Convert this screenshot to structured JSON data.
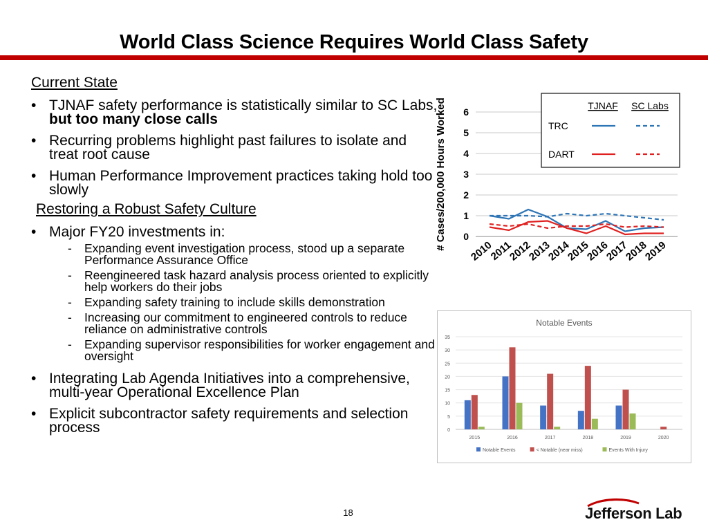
{
  "title": "World Class Science Requires World Class Safety",
  "current_state": {
    "heading": "Current State",
    "bullets": [
      {
        "text": "TJNAF safety performance is statistically similar to SC Labs, ",
        "bold": "but too many close calls"
      },
      {
        "text": "Recurring problems highlight past failures to isolate and treat root cause"
      },
      {
        "text": "Human Performance Improvement practices taking hold too slowly"
      }
    ]
  },
  "restoring": {
    "heading": "Restoring a Robust Safety Culture",
    "investments_label": "Major FY20 investments in:",
    "subitems": [
      "Expanding event investigation process, stood up a separate Performance Assurance Office",
      "Reengineered task hazard analysis process oriented to explicitly help workers do their jobs",
      "Expanding safety training to include skills demonstration",
      "Increasing our commitment to engineered controls to reduce reliance on administrative controls",
      "Expanding supervisor responsibilities for worker engagement and oversight"
    ],
    "bullets": [
      "Integrating Lab Agenda Initiatives into a comprehensive, multi-year Operational Excellence Plan",
      "Explicit subcontractor safety requirements and selection process"
    ]
  },
  "page_number": "18",
  "logo": "Jefferson Lab",
  "chart_data": [
    {
      "type": "line",
      "title": "",
      "ylabel": "# Cases/200,000 Hours Worked",
      "xlabel": "",
      "x": [
        "2010",
        "2011",
        "2012",
        "2013",
        "2014",
        "2015",
        "2016",
        "2017",
        "2018",
        "2019"
      ],
      "ylim": [
        0,
        6
      ],
      "yticks": [
        "0",
        "1",
        "2",
        "3",
        "4",
        "5",
        "6"
      ],
      "grid": true,
      "legend": {
        "placement": "top-right",
        "col_headers": [
          "TJNAF",
          "SC Labs"
        ],
        "rows": [
          "TRC",
          "DART"
        ]
      },
      "series": [
        {
          "name": "TRC",
          "org": "TJNAF",
          "color": "#2e75b6",
          "dash": false,
          "values": [
            1.0,
            0.85,
            1.3,
            0.95,
            0.4,
            0.35,
            0.75,
            0.25,
            0.4,
            0.45
          ]
        },
        {
          "name": "TRC",
          "org": "SC Labs",
          "color": "#2e75b6",
          "dash": true,
          "values": [
            1.0,
            1.0,
            1.0,
            0.95,
            1.1,
            1.0,
            1.1,
            1.0,
            0.9,
            0.8
          ]
        },
        {
          "name": "DART",
          "org": "TJNAF",
          "color": "#e02020",
          "dash": false,
          "values": [
            0.45,
            0.3,
            0.7,
            0.75,
            0.4,
            0.15,
            0.5,
            0.1,
            0.15,
            0.15
          ]
        },
        {
          "name": "DART",
          "org": "SC Labs",
          "color": "#e02020",
          "dash": true,
          "values": [
            0.6,
            0.5,
            0.6,
            0.4,
            0.5,
            0.5,
            0.6,
            0.45,
            0.5,
            0.45
          ]
        }
      ]
    },
    {
      "type": "bar",
      "title": "Notable Events",
      "categories": [
        "2015",
        "2016",
        "2017",
        "2018",
        "2019",
        "2020"
      ],
      "ylim": [
        0,
        35
      ],
      "yticks": [
        "0",
        "5",
        "10",
        "15",
        "20",
        "25",
        "30",
        "35"
      ],
      "grid": true,
      "legend": {
        "placement": "bottom"
      },
      "series": [
        {
          "name": "Notable Events",
          "color": "#4472c4",
          "values": [
            11,
            20,
            9,
            7,
            9,
            0
          ]
        },
        {
          "name": "< Notable (near miss)",
          "color": "#c0504d",
          "values": [
            13,
            31,
            21,
            24,
            15,
            1
          ]
        },
        {
          "name": "Events With Injury",
          "color": "#9bbb59",
          "values": [
            1,
            10,
            1,
            4,
            6,
            0
          ]
        }
      ]
    }
  ]
}
